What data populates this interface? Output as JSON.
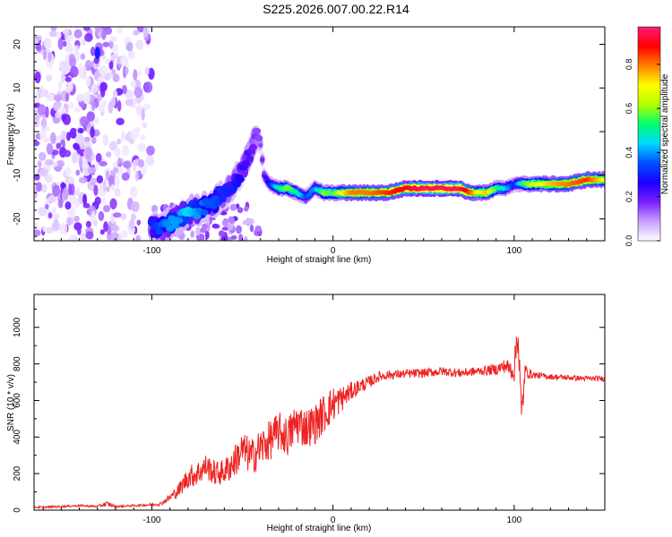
{
  "title": "S225.2026.007.00.22.R14",
  "chart_data": [
    {
      "type": "heatmap",
      "title": "S225.2026.007.00.22.R14",
      "xlabel": "Height of straight line (km)",
      "ylabel": "Frequency (Hz)",
      "xlim": [
        -165,
        150
      ],
      "ylim": [
        -25,
        24
      ],
      "xticks": [
        -100,
        0,
        100
      ],
      "yticks": [
        -20,
        -10,
        0,
        10,
        20
      ],
      "grid": false,
      "colorbar": {
        "label": "Normalized spectral amplitude",
        "range": [
          0.0,
          0.97
        ],
        "ticks": [
          0.0,
          0.2,
          0.4,
          0.6,
          0.8
        ],
        "colormap": [
          "#ffffff",
          "#c8a0ff",
          "#7a1fff",
          "#1a00ff",
          "#0050ff",
          "#00d8ff",
          "#00ff70",
          "#b0ff00",
          "#ffff00",
          "#ff8000",
          "#ff0000",
          "#ff1a7a"
        ]
      },
      "ridge_track": {
        "x": [
          -100,
          -95,
          -90,
          -85,
          -80,
          -75,
          -70,
          -65,
          -60,
          -55,
          -50,
          -45,
          -42,
          -40,
          -38,
          -35,
          -30,
          -25,
          -20,
          -15,
          -10,
          -5,
          0,
          5,
          10,
          20,
          30,
          40,
          50,
          60,
          70,
          75,
          80,
          85,
          90,
          95,
          100,
          105,
          110,
          120,
          130,
          140,
          150
        ],
        "y": [
          -22,
          -22,
          -21,
          -20,
          -18,
          -18,
          -17,
          -16,
          -14,
          -12,
          -9,
          -4,
          0,
          -3,
          -10,
          -12,
          -13,
          -13,
          -14,
          -15,
          -13,
          -14,
          -14,
          -14,
          -14,
          -14,
          -14,
          -13,
          -13,
          -13,
          -13,
          -14,
          -14,
          -14,
          -13,
          -13,
          -12,
          -12,
          -12,
          -12,
          -12,
          -11,
          -11
        ],
        "amplitude": [
          0.3,
          0.35,
          0.4,
          0.4,
          0.45,
          0.4,
          0.35,
          0.35,
          0.3,
          0.3,
          0.25,
          0.2,
          0.15,
          0.15,
          0.2,
          0.3,
          0.5,
          0.6,
          0.5,
          0.35,
          0.4,
          0.6,
          0.55,
          0.7,
          0.8,
          0.8,
          0.85,
          0.9,
          0.95,
          0.95,
          0.95,
          0.85,
          0.7,
          0.75,
          0.55,
          0.45,
          0.3,
          0.55,
          0.65,
          0.75,
          0.8,
          0.85,
          0.7
        ]
      },
      "noise_region": {
        "x_range": [
          -165,
          -100
        ],
        "y_range": [
          -25,
          24
        ],
        "amplitude_range": [
          0.02,
          0.2
        ]
      }
    },
    {
      "type": "line",
      "xlabel": "Height of straight line (km)",
      "ylabel": "SNR (10 * v/v)",
      "xlim": [
        -165,
        150
      ],
      "ylim": [
        0,
        1180
      ],
      "xticks": [
        -100,
        0,
        100
      ],
      "yticks": [
        0,
        200,
        400,
        600,
        800,
        1000
      ],
      "grid": false,
      "color": "#ee2222",
      "series": [
        {
          "x": [
            -165,
            -150,
            -140,
            -130,
            -125,
            -120,
            -110,
            -100,
            -95,
            -90,
            -85,
            -80,
            -75,
            -70,
            -65,
            -60,
            -55,
            -50,
            -45,
            -40,
            -35,
            -30,
            -25,
            -20,
            -15,
            -10,
            -5,
            0,
            5,
            10,
            15,
            20,
            25,
            30,
            40,
            50,
            60,
            70,
            80,
            90,
            95,
            100,
            102,
            104,
            106,
            110,
            120,
            130,
            140,
            150
          ],
          "y": [
            15,
            20,
            25,
            20,
            35,
            20,
            25,
            30,
            35,
            70,
            110,
            180,
            200,
            240,
            200,
            210,
            260,
            330,
            290,
            340,
            380,
            430,
            400,
            480,
            450,
            470,
            530,
            580,
            610,
            650,
            680,
            700,
            730,
            740,
            745,
            750,
            760,
            750,
            760,
            770,
            790,
            760,
            1000,
            500,
            760,
            740,
            730,
            725,
            720,
            720
          ],
          "noise": [
            5,
            5,
            5,
            5,
            15,
            5,
            5,
            8,
            10,
            20,
            40,
            60,
            70,
            70,
            70,
            70,
            90,
            100,
            100,
            110,
            110,
            110,
            110,
            120,
            110,
            110,
            110,
            100,
            70,
            50,
            40,
            35,
            30,
            25,
            25,
            25,
            25,
            25,
            25,
            30,
            40,
            60,
            150,
            120,
            40,
            20,
            15,
            15,
            15,
            15
          ]
        }
      ]
    }
  ]
}
